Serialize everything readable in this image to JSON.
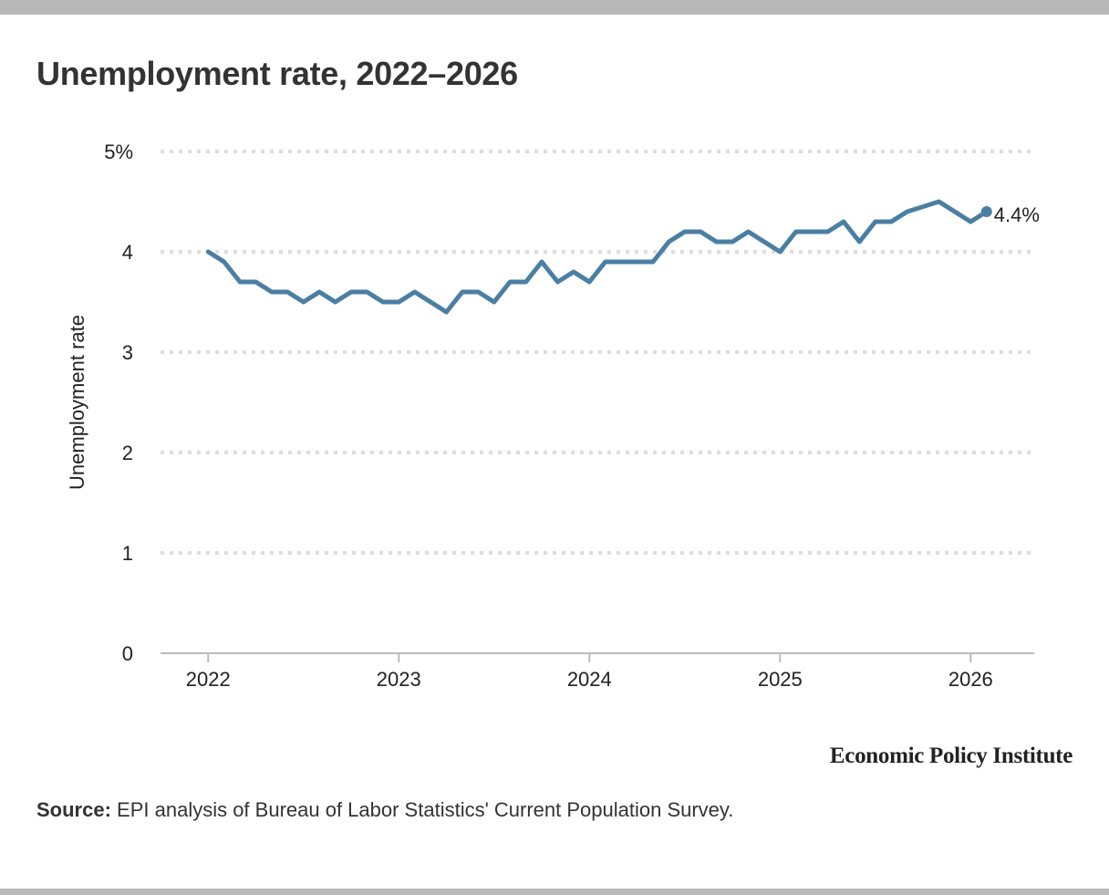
{
  "chart_data": {
    "type": "line",
    "title": "Unemployment rate, 2022–2026",
    "ylabel": "Unemployment rate",
    "xlabel": "",
    "ylim": [
      0,
      5
    ],
    "y_ticks": [
      0,
      1,
      2,
      3,
      4,
      5
    ],
    "y_tick_labels": [
      "0",
      "1",
      "2",
      "3",
      "4",
      "5%"
    ],
    "x_ticks": [
      2022,
      2023,
      2024,
      2025,
      2026
    ],
    "x_tick_labels": [
      "2022",
      "2023",
      "2024",
      "2025",
      "2026"
    ],
    "xlim": [
      "2021-10",
      "2026-05"
    ],
    "grid": true,
    "series": [
      {
        "color": "#4a7fa3",
        "x": [
          "2022-01",
          "2022-02",
          "2022-03",
          "2022-04",
          "2022-05",
          "2022-06",
          "2022-07",
          "2022-08",
          "2022-09",
          "2022-10",
          "2022-11",
          "2022-12",
          "2023-01",
          "2023-02",
          "2023-03",
          "2023-04",
          "2023-05",
          "2023-06",
          "2023-07",
          "2023-08",
          "2023-09",
          "2023-10",
          "2023-11",
          "2023-12",
          "2024-01",
          "2024-02",
          "2024-03",
          "2024-04",
          "2024-05",
          "2024-06",
          "2024-07",
          "2024-08",
          "2024-09",
          "2024-10",
          "2024-11",
          "2024-12",
          "2025-01",
          "2025-02",
          "2025-03",
          "2025-04",
          "2025-05",
          "2025-06",
          "2025-07",
          "2025-08",
          "2025-09",
          "2025-11",
          "2025-12",
          "2026-01",
          "2026-02"
        ],
        "values": [
          4.0,
          3.9,
          3.7,
          3.7,
          3.6,
          3.6,
          3.5,
          3.6,
          3.5,
          3.6,
          3.6,
          3.5,
          3.5,
          3.6,
          3.5,
          3.4,
          3.6,
          3.6,
          3.5,
          3.7,
          3.7,
          3.9,
          3.7,
          3.8,
          3.7,
          3.9,
          3.9,
          3.9,
          3.9,
          4.1,
          4.2,
          4.2,
          4.1,
          4.1,
          4.2,
          4.1,
          4.0,
          4.2,
          4.2,
          4.2,
          4.3,
          4.1,
          4.3,
          4.3,
          4.4,
          4.5,
          4.4,
          4.3,
          4.4
        ]
      }
    ],
    "end_label": "4.4%"
  },
  "branding": "Economic Policy Institute",
  "source": {
    "label": "Source:",
    "text": " EPI analysis of Bureau of Labor Statistics' Current Population Survey."
  }
}
